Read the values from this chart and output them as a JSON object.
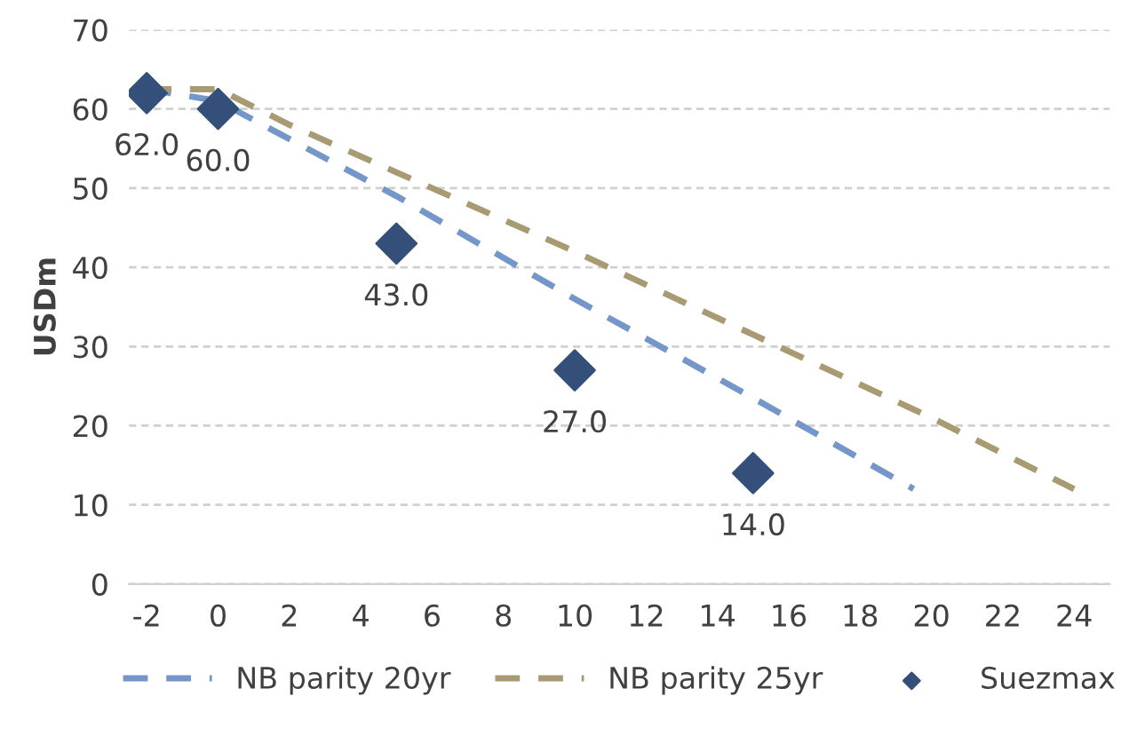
{
  "chart_data": {
    "type": "line",
    "ylabel": "USDm",
    "xlim": [
      -2.5,
      25
    ],
    "ylim": [
      0,
      70
    ],
    "xticks": [
      -2,
      0,
      2,
      4,
      6,
      8,
      10,
      12,
      14,
      16,
      18,
      20,
      22,
      24
    ],
    "yticks": [
      0,
      10,
      20,
      30,
      40,
      50,
      60,
      70
    ],
    "grid": "y",
    "legend": "bottom",
    "line_style": "dashed",
    "series": [
      {
        "name": "NB parity 20yr",
        "color": "#7596c8",
        "x": [
          -2,
          0,
          5,
          10,
          15,
          19.5
        ],
        "values": [
          62.5,
          61,
          49,
          36,
          23.5,
          12
        ]
      },
      {
        "name": "NB parity 25yr",
        "color": "#a89a72",
        "x": [
          -2,
          0,
          2,
          5,
          10,
          15,
          20,
          24
        ],
        "values": [
          62.5,
          62.5,
          58,
          52,
          42,
          31.5,
          21,
          12
        ]
      },
      {
        "name": "Suezmax",
        "type": "scatter",
        "marker": "diamond",
        "color": "#34507a",
        "x": [
          -2,
          0,
          5,
          10,
          15
        ],
        "values": [
          62,
          60,
          43,
          27,
          14
        ],
        "value_labels": [
          "62.0",
          "60.0",
          "43.0",
          "27.0",
          "14.0"
        ]
      }
    ]
  }
}
